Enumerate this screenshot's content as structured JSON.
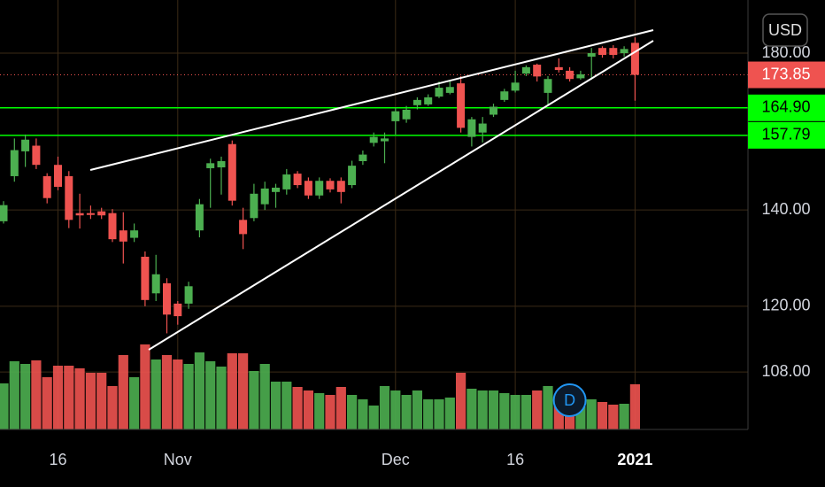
{
  "chart_data": {
    "type": "candlestick",
    "categories": [
      null,
      null,
      null,
      null,
      null,
      "16",
      null,
      null,
      null,
      null,
      null,
      null,
      null,
      null,
      null,
      null,
      "Nov",
      null,
      null,
      null,
      null,
      null,
      null,
      null,
      null,
      null,
      null,
      null,
      null,
      null,
      null,
      null,
      null,
      null,
      null,
      null,
      "Dec",
      null,
      null,
      null,
      null,
      null,
      null,
      null,
      null,
      null,
      null,
      "16",
      null,
      null,
      null,
      null,
      null,
      null,
      null,
      null,
      null,
      null,
      "2021"
    ],
    "open": [
      137.5,
      147.8,
      153.8,
      155.2,
      147.8,
      150.5,
      147.8,
      139.3,
      139.3,
      139.7,
      139.3,
      135.5,
      133.9,
      129.9,
      122.5,
      124.5,
      120.5,
      120.5,
      135.5,
      149.7,
      149.9,
      155.6,
      137.8,
      138.2,
      141.3,
      144.1,
      144.7,
      148.4,
      146.7,
      143.3,
      146.7,
      146.7,
      145.7,
      151.4,
      155.9,
      156.3,
      161.4,
      161.9,
      165.6,
      165.8,
      167.9,
      168.9,
      171.5,
      157.4,
      158.5,
      163.1,
      167,
      169.5,
      174.2,
      176.7,
      168.9,
      176,
      175,
      172.9,
      179,
      181.5,
      181.5,
      180,
      183
    ],
    "high": [
      142,
      157,
      158,
      157,
      148.5,
      152.5,
      149,
      143.7,
      141,
      140.5,
      140.2,
      139.5,
      137,
      131,
      130.3,
      125.5,
      121,
      124.8,
      142.5,
      152,
      152.5,
      156.5,
      140.5,
      146,
      146.5,
      146,
      149.5,
      149,
      147.5,
      147.5,
      147.3,
      147.5,
      151.5,
      154,
      158.5,
      158.5,
      165,
      165.4,
      167.7,
      168.5,
      172,
      172.5,
      173.5,
      162.5,
      162.5,
      166,
      170,
      175,
      176.5,
      177,
      173.5,
      178.5,
      176,
      175,
      181.5,
      182,
      182.3,
      182,
      184.6
    ],
    "low": [
      137,
      146.5,
      150,
      149.5,
      141.5,
      144.5,
      136,
      135.9,
      138,
      138,
      133,
      128.5,
      133,
      120,
      121,
      114.9,
      116.5,
      119.5,
      134,
      140.5,
      143.5,
      141,
      131.5,
      137.5,
      140,
      140.5,
      143.5,
      145,
      142.5,
      142.5,
      144,
      141.5,
      145,
      150.5,
      155,
      150.9,
      158,
      161,
      164.5,
      165.4,
      167.5,
      168.5,
      158.5,
      155,
      156,
      162.5,
      166.5,
      169,
      173.5,
      172,
      165.5,
      174.5,
      172,
      172.5,
      172.5,
      178.7,
      178.5,
      179,
      166.8
    ],
    "close": [
      141.1,
      154.1,
      156.7,
      150.5,
      142.7,
      145.3,
      137.8,
      138.8,
      138.9,
      138.8,
      133.6,
      133.1,
      135.5,
      121.2,
      126.3,
      118.4,
      118.1,
      123.9,
      141.3,
      150.9,
      151.4,
      142.1,
      134.7,
      143.7,
      144.9,
      145.1,
      148.2,
      145.7,
      143.3,
      146.7,
      144.7,
      144.1,
      150.3,
      153,
      157.4,
      157,
      164,
      164.4,
      167,
      167.7,
      170.3,
      170.5,
      159.7,
      161.9,
      160.8,
      165.2,
      169.3,
      171.7,
      176,
      173.4,
      172.7,
      175.2,
      172.7,
      174,
      180,
      179.5,
      179.5,
      181.2,
      173.85
    ],
    "volume": [
      52,
      77,
      74,
      78,
      59,
      72,
      72,
      69,
      64,
      64,
      49,
      84,
      59,
      96,
      79,
      84,
      79,
      74,
      87,
      77,
      71,
      86,
      86,
      66,
      74,
      54,
      54,
      48,
      44,
      41,
      39,
      48,
      39,
      34,
      27,
      49,
      44,
      39,
      44,
      34,
      34,
      36,
      64,
      46,
      44,
      44,
      41,
      39,
      39,
      44,
      49,
      39,
      34,
      26,
      34,
      31,
      28,
      29,
      51
    ],
    "up_color": "#4caf50",
    "down_color": "#ef5350",
    "log_scale": true,
    "grid": true,
    "ylim": [
      98.5,
      196
    ],
    "yticks": [
      {
        "value": 180,
        "label": "180.00"
      },
      {
        "value": 140,
        "label": "140.00"
      },
      {
        "value": 120,
        "label": "120.00"
      },
      {
        "value": 108,
        "label": "108.00"
      }
    ],
    "hlines": [
      {
        "value": 164.9,
        "label": "164.90",
        "color": "#00ff00"
      },
      {
        "value": 157.79,
        "label": "157.79",
        "color": "#00ff00"
      }
    ],
    "last_price": {
      "value": 173.85,
      "label": "173.85",
      "color": "#ef5350"
    },
    "currency": "USD",
    "markers": [
      {
        "index": 52,
        "label": "D",
        "color": "#2196f3"
      }
    ]
  }
}
